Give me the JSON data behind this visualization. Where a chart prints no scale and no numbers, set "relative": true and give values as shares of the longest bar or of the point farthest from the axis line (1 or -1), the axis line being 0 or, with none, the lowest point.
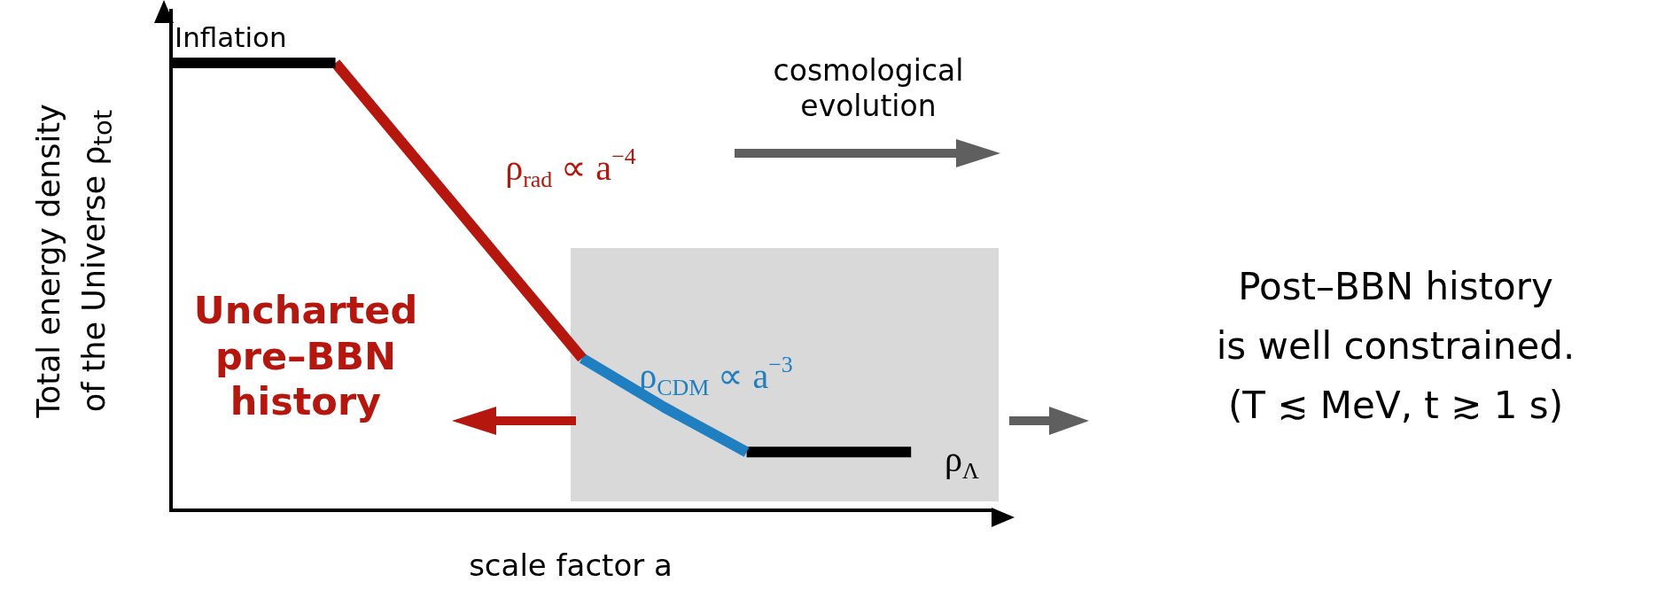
{
  "chart_data": {
    "type": "line",
    "relative": true,
    "marker": "none",
    "categories": [
      null,
      null,
      null,
      null,
      null,
      null,
      null,
      null,
      null,
      null,
      null
    ],
    "xlabel": "scale factor a",
    "ylabel": "Total energy density\nof the Universe ρ$_{tot}$",
    "series": [
      {
        "name": "Inflation",
        "color": "#000000",
        "values": [
          1,
          1,
          1,
          null,
          null,
          null,
          null,
          null,
          null,
          null,
          null
        ]
      },
      {
        "name": "ρ$_{rad}$ ∝ a$^{−4}$",
        "color": "#b5170f",
        "values": [
          null,
          null,
          1,
          0.78,
          0.56,
          0.34,
          null,
          null,
          null,
          null,
          null
        ]
      },
      {
        "name": "ρ$_{CDM}$ ∝ a$^{−3}$",
        "color": "#1f7fc0",
        "values": [
          null,
          null,
          null,
          null,
          null,
          0.34,
          0.23,
          0.13,
          null,
          null,
          null
        ]
      },
      {
        "name": "ρ$_{Λ}$",
        "color": "#000000",
        "values": [
          null,
          null,
          null,
          null,
          null,
          null,
          null,
          0.13,
          0.13,
          0.13,
          null
        ]
      }
    ],
    "annotations": [
      "cosmological\nevolution",
      "Uncharted\npre–BBN\nhistory",
      "Post–BBN history\nis well constrained.\n(T ≲ MeV, t ≳ 1 s)"
    ]
  }
}
